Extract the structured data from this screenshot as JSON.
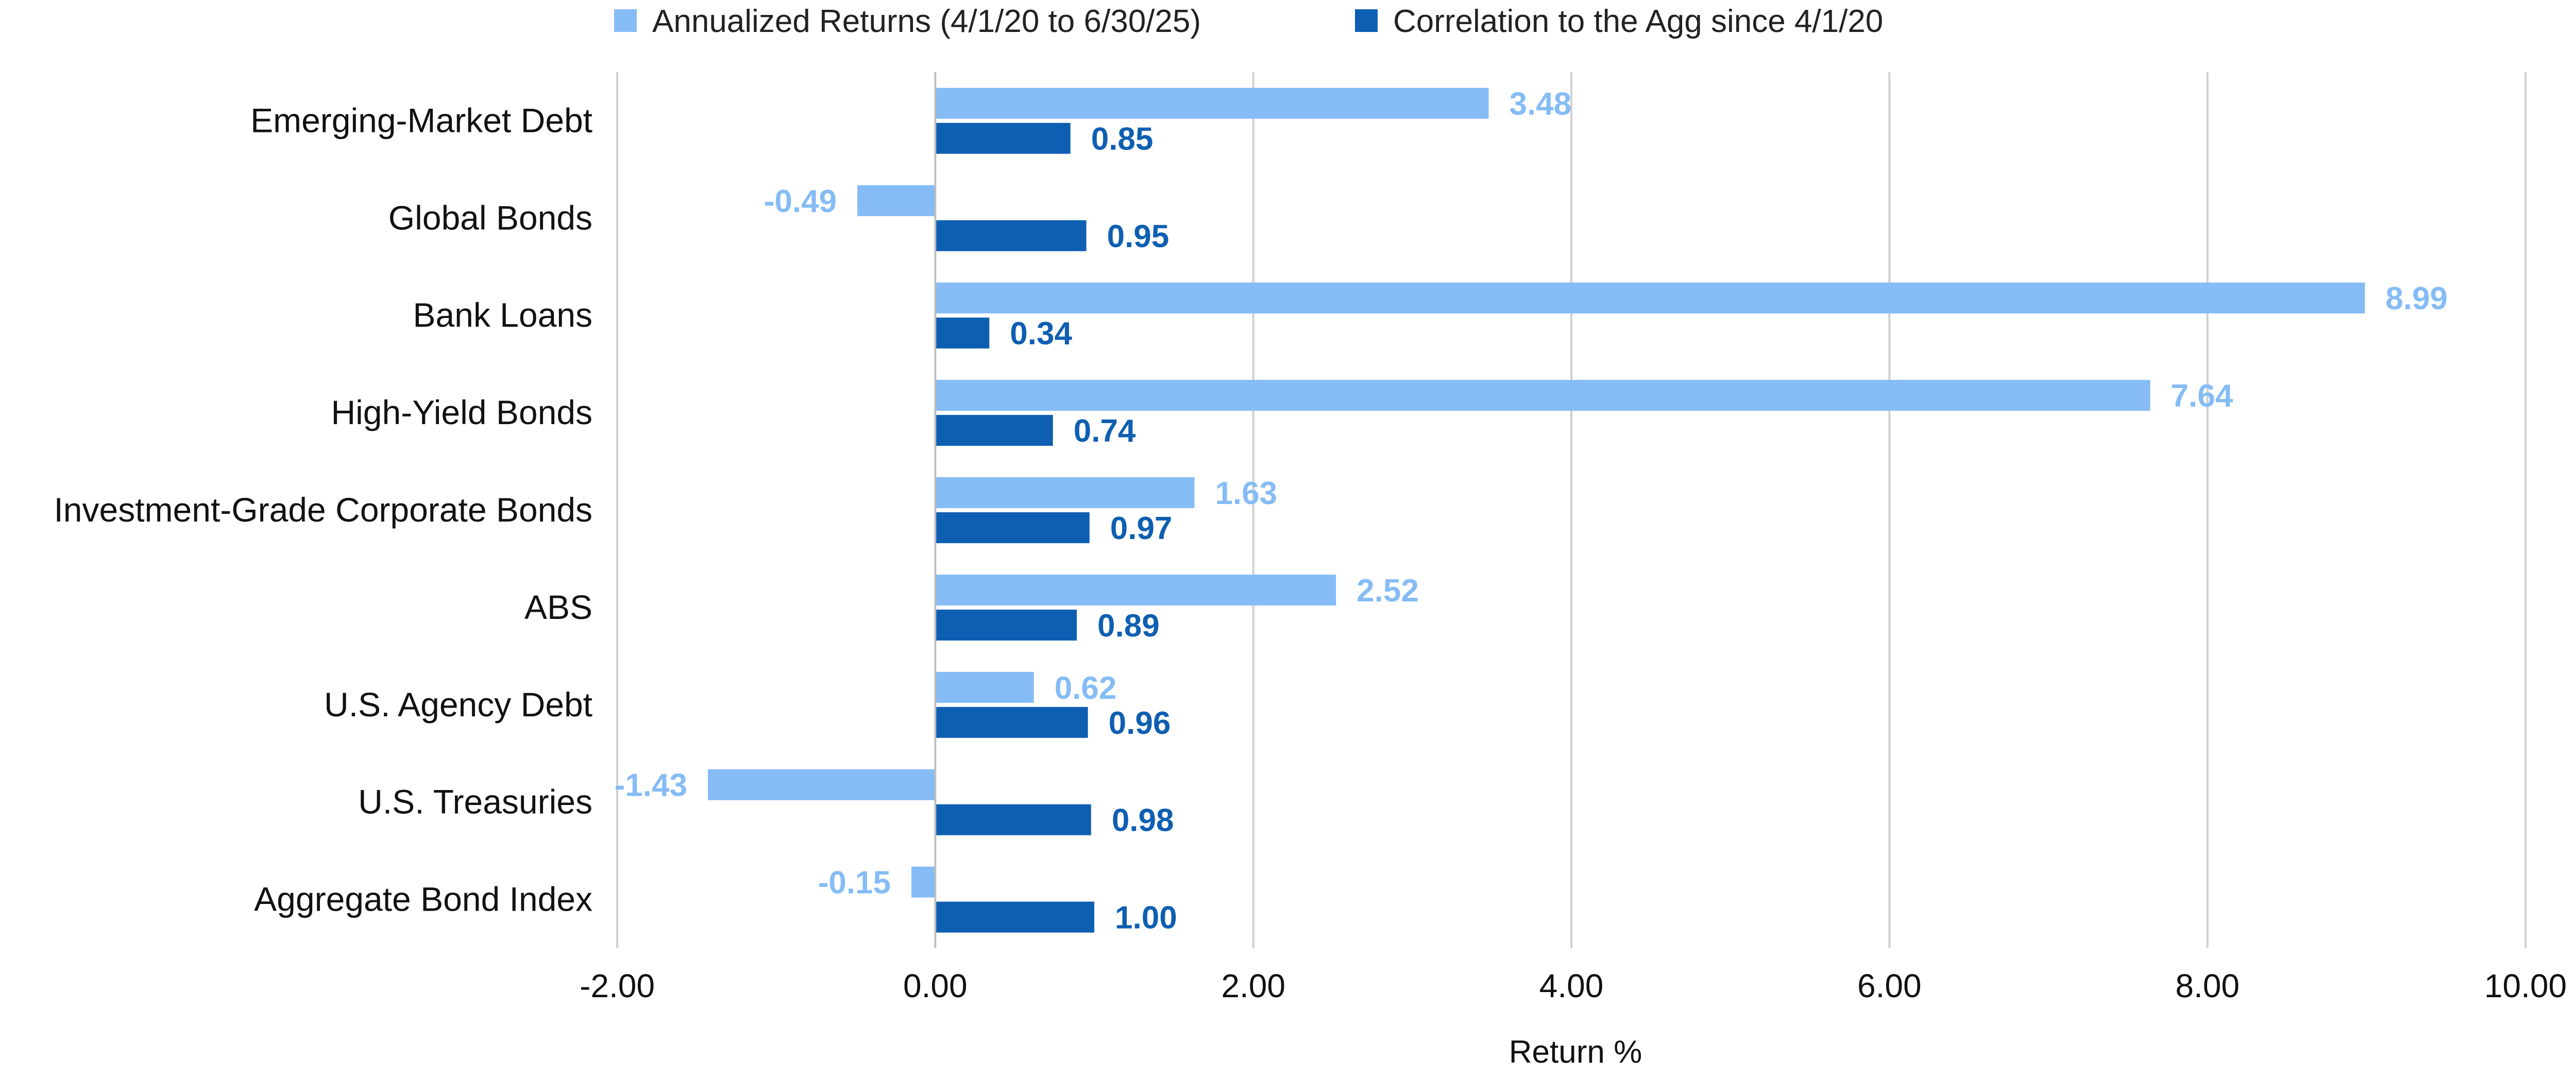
{
  "chart_data": {
    "type": "bar",
    "orientation": "horizontal",
    "categories": [
      "Emerging-Market Debt",
      "Global Bonds",
      "Bank Loans",
      "High-Yield Bonds",
      "Investment-Grade Corporate Bonds",
      "ABS",
      "U.S. Agency Debt",
      "U.S. Treasuries",
      "Aggregate Bond Index"
    ],
    "series": [
      {
        "name": "Annualized Returns (4/1/20 to 6/30/25)",
        "color": "#85BCF5",
        "values": [
          3.48,
          -0.49,
          8.99,
          7.64,
          1.63,
          2.52,
          0.62,
          -1.43,
          -0.15
        ],
        "labels": [
          "3.48",
          "-0.49",
          "8.99",
          "7.64",
          "1.63",
          "2.52",
          "0.62",
          "-1.43",
          "-0.15"
        ]
      },
      {
        "name": "Correlation to the Agg since 4/1/20",
        "color": "#0E5FB1",
        "values": [
          0.85,
          0.95,
          0.34,
          0.74,
          0.97,
          0.89,
          0.96,
          0.98,
          1.0
        ],
        "labels": [
          "0.85",
          "0.95",
          "0.34",
          "0.74",
          "0.97",
          "0.89",
          "0.96",
          "0.98",
          "1.00"
        ]
      }
    ],
    "xlabel": "Return %",
    "xlim": [
      -2,
      10
    ],
    "ticks": [
      -2,
      0,
      2,
      4,
      6,
      8,
      10
    ],
    "tick_labels": [
      "-2.00",
      "0.00",
      "2.00",
      "4.00",
      "6.00",
      "8.00",
      "10.00"
    ],
    "grid": "vertical",
    "legend_position": "top"
  }
}
